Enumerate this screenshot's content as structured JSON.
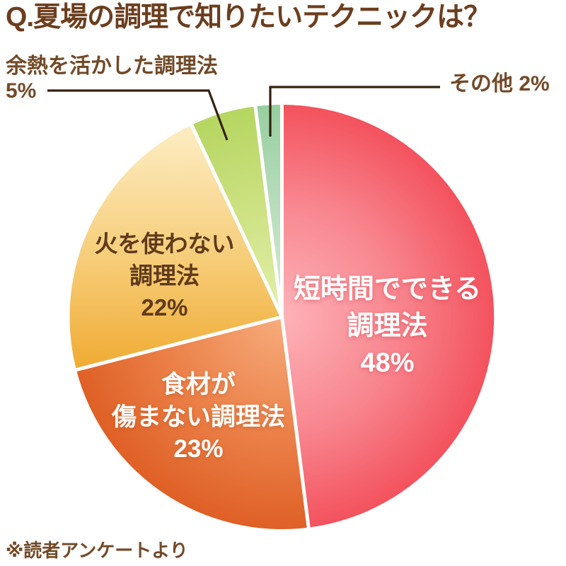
{
  "colors": {
    "background": "#ffffff",
    "title_text": "#6b3e1e",
    "callout_text": "#724a28",
    "leader_line": "#33210d",
    "slice_separator": "#ffffff"
  },
  "footer": "※読者アンケートより",
  "chart_data": {
    "type": "pie",
    "title": "Q.夏場の調理で知りたいテクニックは？",
    "start_angle_deg": 0,
    "clockwise": true,
    "legend_position": "none",
    "source_note": "※読者アンケートより",
    "slices": [
      {
        "label": "短時間でできる調理法",
        "value_pct": 48,
        "label_lines": [
          "短時間でできる",
          "調理法",
          "48%"
        ],
        "gradient": "radial",
        "inner_color": "#fdb3b8",
        "mid_color": "#f8858e",
        "outer_color": "#f3525d",
        "text_color": "#ffffff"
      },
      {
        "label": "食材が傷まない調理法",
        "value_pct": 23,
        "label_lines": [
          "食材が",
          "傷まない調理法",
          "23%"
        ],
        "gradient": "radial",
        "inner_color": "#f7ac7c",
        "mid_color": "#eb8149",
        "outer_color": "#df6026",
        "text_color": "#ffffff"
      },
      {
        "label": "火を使わない調理法",
        "value_pct": 22,
        "label_lines": [
          "火を使わない",
          "調理法",
          "22%"
        ],
        "gradient": "linear",
        "inner_color": "#fdedc4",
        "mid_color": "#f6cd78",
        "outer_color": "#f0ab33",
        "text_color": "#5f3a1b"
      },
      {
        "label": "余熱を活かした調理法",
        "value_pct": 5,
        "callout_lines": [
          "余熱を活かした調理法",
          "5%"
        ],
        "gradient": "radial",
        "inner_color": "#e3f0ab",
        "mid_color": "#cce181",
        "outer_color": "#b5d660",
        "text_color": "#724a28"
      },
      {
        "label": "その他",
        "value_pct": 2,
        "callout": "その他 2%",
        "gradient": "radial",
        "inner_color": "#d8edd4",
        "mid_color": "#b6dcba",
        "outer_color": "#97cf9f",
        "text_color": "#724a28"
      }
    ]
  }
}
